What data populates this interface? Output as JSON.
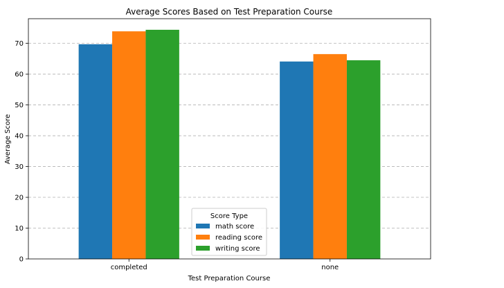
{
  "chart_data": {
    "type": "bar",
    "title": "Average Scores Based on Test Preparation Course",
    "xlabel": "Test Preparation Course",
    "ylabel": "Average Score",
    "categories": [
      "completed",
      "none"
    ],
    "series": [
      {
        "name": "math score",
        "values": [
          69.7,
          64.1
        ],
        "color": "#1f77b4"
      },
      {
        "name": "reading score",
        "values": [
          73.9,
          66.5
        ],
        "color": "#ff7f0e"
      },
      {
        "name": "writing score",
        "values": [
          74.4,
          64.5
        ],
        "color": "#2ca02c"
      }
    ],
    "ylim": [
      0,
      78
    ],
    "yticks": [
      0,
      10,
      20,
      30,
      40,
      50,
      60,
      70
    ],
    "grid": "y-dashed",
    "legend": {
      "title": "Score Type",
      "placement": "bottom-center"
    }
  }
}
